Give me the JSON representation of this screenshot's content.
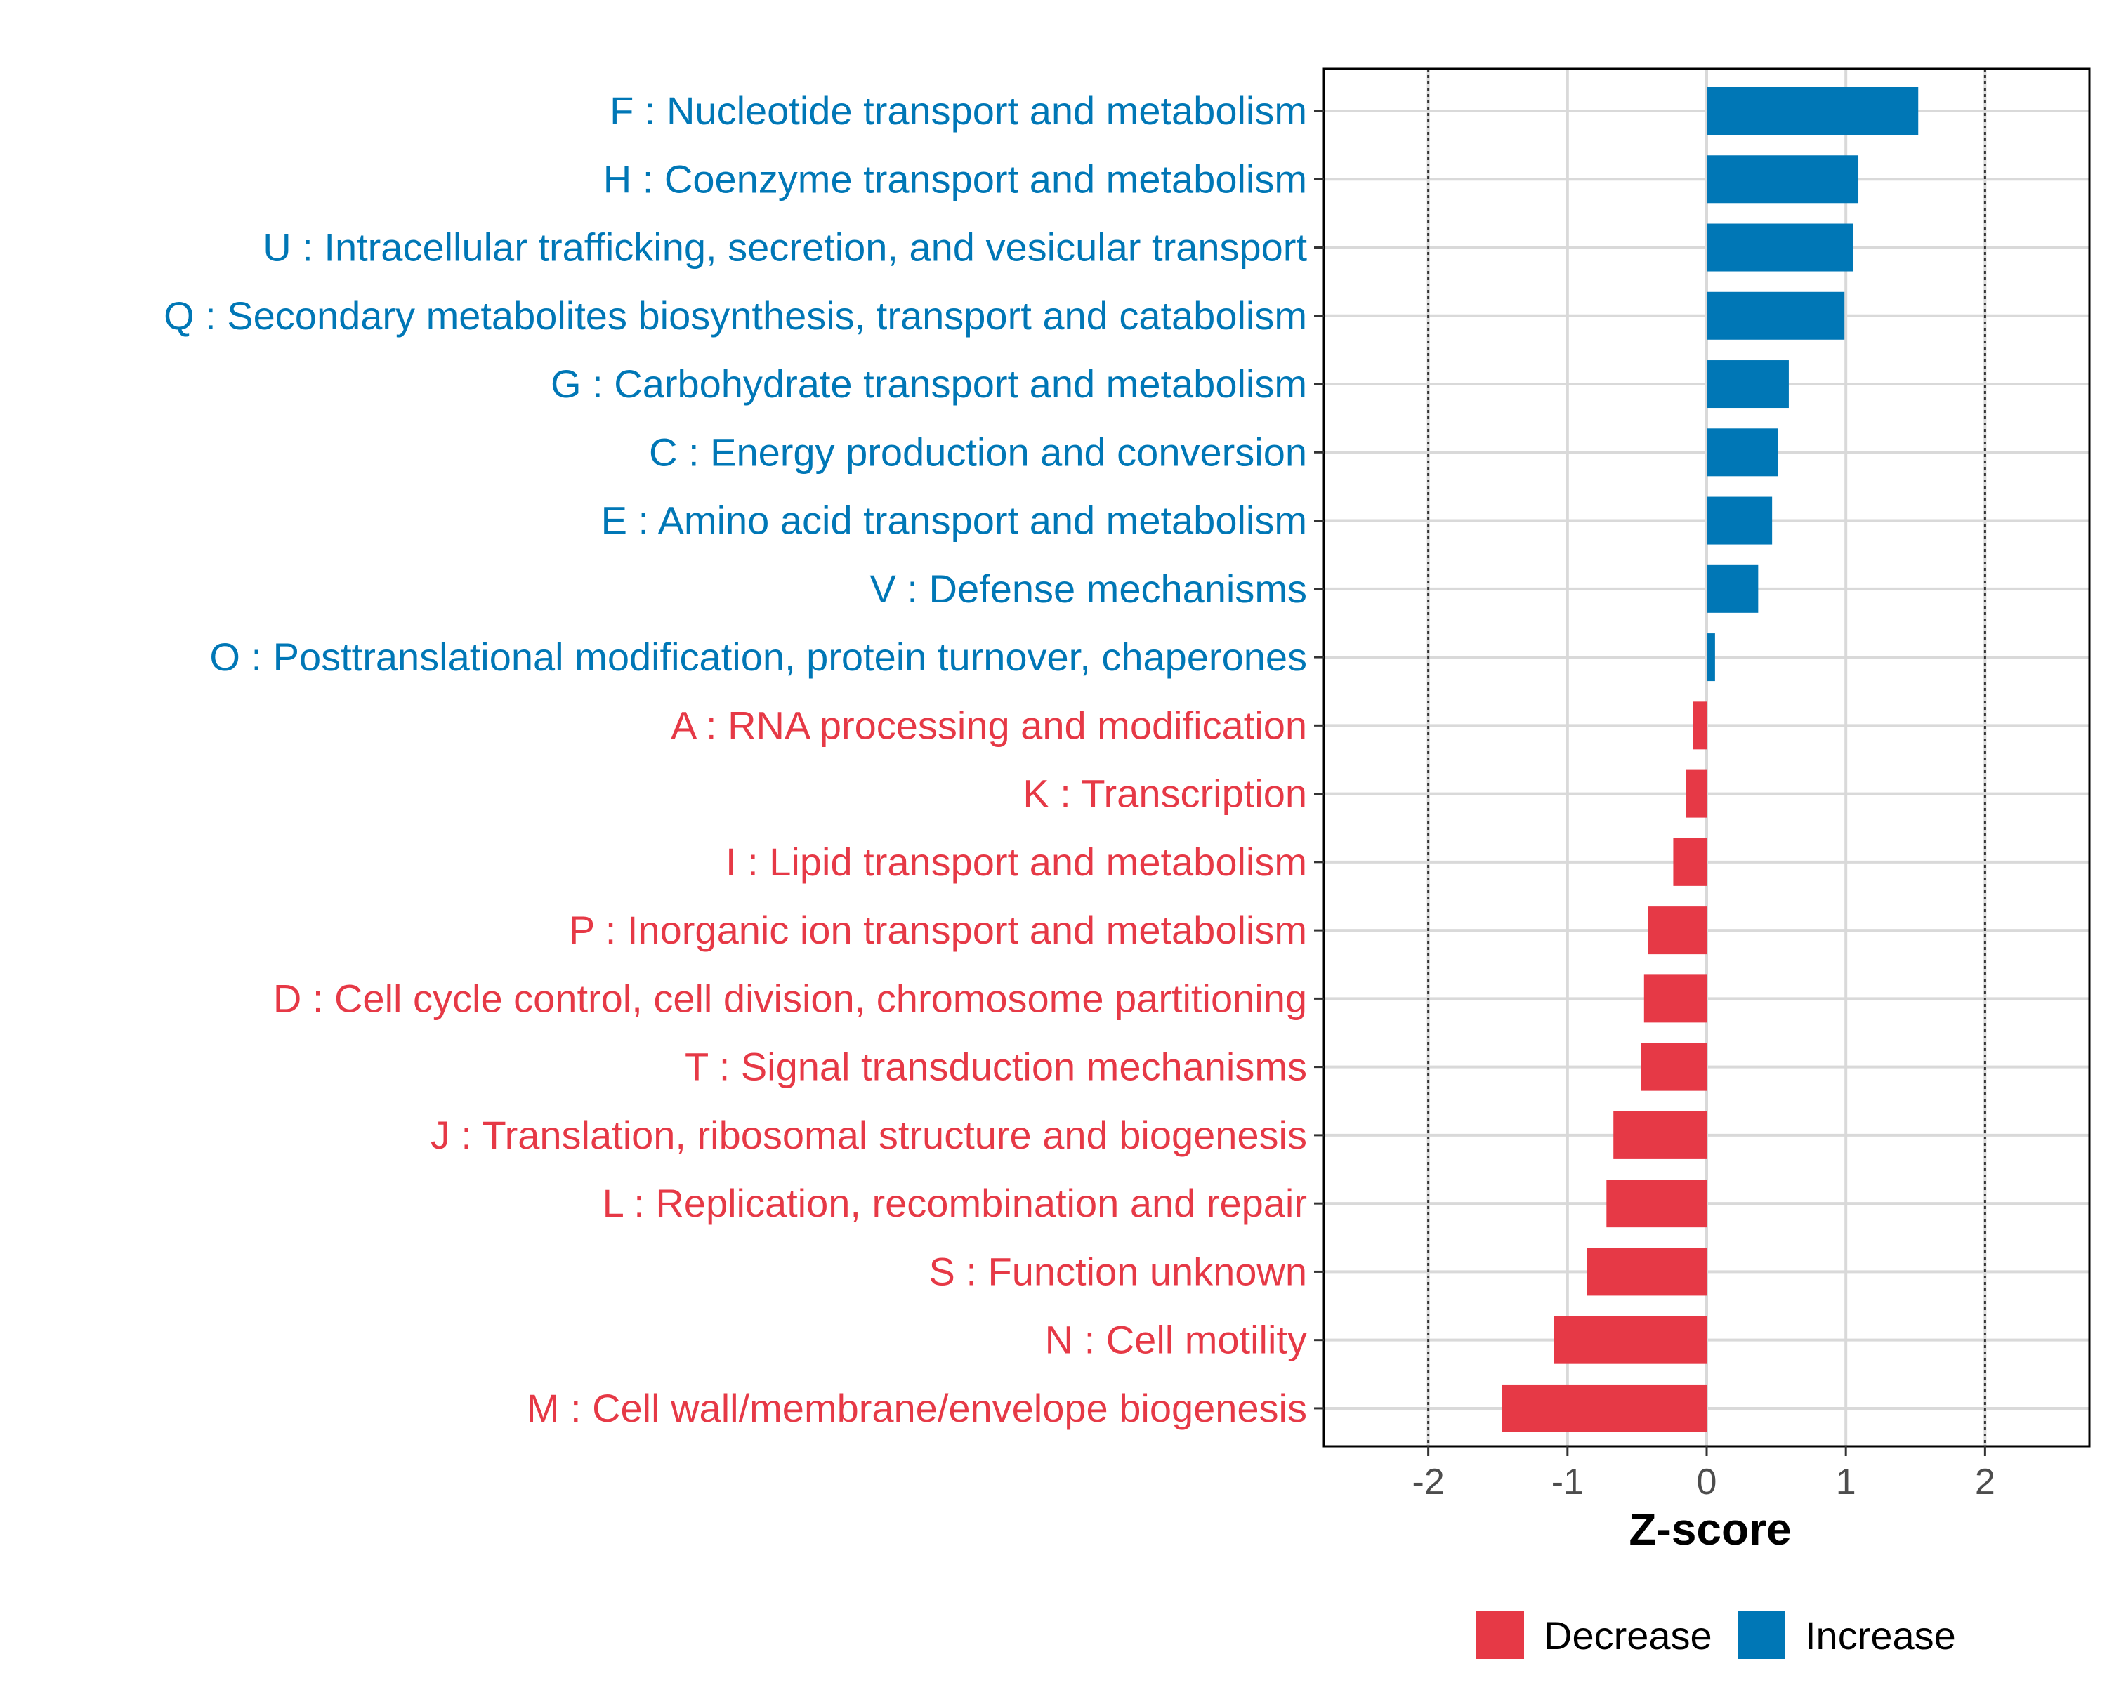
{
  "chart_data": {
    "type": "bar",
    "orientation": "horizontal",
    "xlabel": "Z-score",
    "ylabel": "",
    "xlim": [
      -2.75,
      2.75
    ],
    "x_ticks": [
      -2,
      -1,
      0,
      1,
      2
    ],
    "x_tick_labels": [
      "-2",
      "-1",
      "0",
      "1",
      "2"
    ],
    "reference_lines": [
      -2,
      2
    ],
    "grid": true,
    "colors": {
      "Decrease": "#e63946",
      "Increase": "#0077b6"
    },
    "legend": {
      "placement": "bottom",
      "entries": [
        "Decrease",
        "Increase"
      ]
    },
    "categories": [
      "F : Nucleotide transport and metabolism",
      "H : Coenzyme transport and metabolism",
      "U : Intracellular trafficking, secretion, and vesicular transport",
      "Q : Secondary metabolites biosynthesis, transport and catabolism",
      "G : Carbohydrate transport and metabolism",
      "C : Energy production and conversion",
      "E : Amino acid transport and metabolism",
      "V : Defense mechanisms",
      "O : Posttranslational modification, protein turnover, chaperones",
      "A : RNA processing and modification",
      "K : Transcription",
      "I : Lipid transport and metabolism",
      "P : Inorganic ion transport and metabolism",
      "D : Cell cycle control, cell division, chromosome partitioning",
      "T : Signal transduction mechanisms",
      "J : Translation, ribosomal structure and biogenesis",
      "L : Replication, recombination and repair",
      "S : Function unknown",
      "N : Cell motility",
      "M : Cell wall/membrane/envelope biogenesis"
    ],
    "values": [
      1.52,
      1.09,
      1.05,
      0.99,
      0.59,
      0.51,
      0.47,
      0.37,
      0.06,
      -0.1,
      -0.15,
      -0.24,
      -0.42,
      -0.45,
      -0.47,
      -0.67,
      -0.72,
      -0.86,
      -1.1,
      -1.47
    ],
    "groups": [
      "Increase",
      "Increase",
      "Increase",
      "Increase",
      "Increase",
      "Increase",
      "Increase",
      "Increase",
      "Increase",
      "Decrease",
      "Decrease",
      "Decrease",
      "Decrease",
      "Decrease",
      "Decrease",
      "Decrease",
      "Decrease",
      "Decrease",
      "Decrease",
      "Decrease"
    ]
  }
}
